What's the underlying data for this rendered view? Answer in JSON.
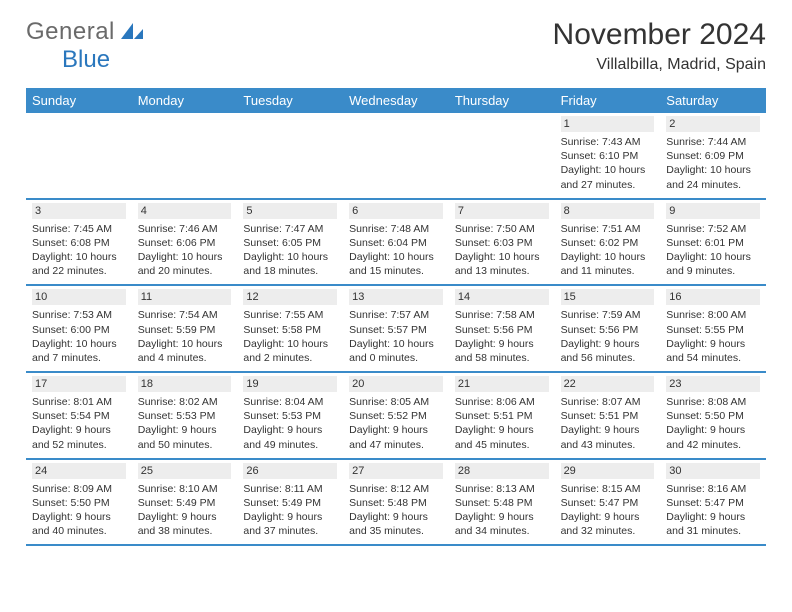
{
  "logo": {
    "t1": "General",
    "t2": "Blue"
  },
  "header": {
    "title": "November 2024",
    "subtitle": "Villalbilla, Madrid, Spain"
  },
  "colors": {
    "header_bg": "#3a8bc9",
    "daynum_bg": "#ededed",
    "text": "#333333",
    "rule": "#3a8bc9"
  },
  "dayNames": [
    "Sunday",
    "Monday",
    "Tuesday",
    "Wednesday",
    "Thursday",
    "Friday",
    "Saturday"
  ],
  "weeks": [
    [
      {
        "n": "",
        "sunrise": "",
        "sunset": "",
        "daylight": ""
      },
      {
        "n": "",
        "sunrise": "",
        "sunset": "",
        "daylight": ""
      },
      {
        "n": "",
        "sunrise": "",
        "sunset": "",
        "daylight": ""
      },
      {
        "n": "",
        "sunrise": "",
        "sunset": "",
        "daylight": ""
      },
      {
        "n": "",
        "sunrise": "",
        "sunset": "",
        "daylight": ""
      },
      {
        "n": "1",
        "sunrise": "Sunrise: 7:43 AM",
        "sunset": "Sunset: 6:10 PM",
        "daylight": "Daylight: 10 hours and 27 minutes."
      },
      {
        "n": "2",
        "sunrise": "Sunrise: 7:44 AM",
        "sunset": "Sunset: 6:09 PM",
        "daylight": "Daylight: 10 hours and 24 minutes."
      }
    ],
    [
      {
        "n": "3",
        "sunrise": "Sunrise: 7:45 AM",
        "sunset": "Sunset: 6:08 PM",
        "daylight": "Daylight: 10 hours and 22 minutes."
      },
      {
        "n": "4",
        "sunrise": "Sunrise: 7:46 AM",
        "sunset": "Sunset: 6:06 PM",
        "daylight": "Daylight: 10 hours and 20 minutes."
      },
      {
        "n": "5",
        "sunrise": "Sunrise: 7:47 AM",
        "sunset": "Sunset: 6:05 PM",
        "daylight": "Daylight: 10 hours and 18 minutes."
      },
      {
        "n": "6",
        "sunrise": "Sunrise: 7:48 AM",
        "sunset": "Sunset: 6:04 PM",
        "daylight": "Daylight: 10 hours and 15 minutes."
      },
      {
        "n": "7",
        "sunrise": "Sunrise: 7:50 AM",
        "sunset": "Sunset: 6:03 PM",
        "daylight": "Daylight: 10 hours and 13 minutes."
      },
      {
        "n": "8",
        "sunrise": "Sunrise: 7:51 AM",
        "sunset": "Sunset: 6:02 PM",
        "daylight": "Daylight: 10 hours and 11 minutes."
      },
      {
        "n": "9",
        "sunrise": "Sunrise: 7:52 AM",
        "sunset": "Sunset: 6:01 PM",
        "daylight": "Daylight: 10 hours and 9 minutes."
      }
    ],
    [
      {
        "n": "10",
        "sunrise": "Sunrise: 7:53 AM",
        "sunset": "Sunset: 6:00 PM",
        "daylight": "Daylight: 10 hours and 7 minutes."
      },
      {
        "n": "11",
        "sunrise": "Sunrise: 7:54 AM",
        "sunset": "Sunset: 5:59 PM",
        "daylight": "Daylight: 10 hours and 4 minutes."
      },
      {
        "n": "12",
        "sunrise": "Sunrise: 7:55 AM",
        "sunset": "Sunset: 5:58 PM",
        "daylight": "Daylight: 10 hours and 2 minutes."
      },
      {
        "n": "13",
        "sunrise": "Sunrise: 7:57 AM",
        "sunset": "Sunset: 5:57 PM",
        "daylight": "Daylight: 10 hours and 0 minutes."
      },
      {
        "n": "14",
        "sunrise": "Sunrise: 7:58 AM",
        "sunset": "Sunset: 5:56 PM",
        "daylight": "Daylight: 9 hours and 58 minutes."
      },
      {
        "n": "15",
        "sunrise": "Sunrise: 7:59 AM",
        "sunset": "Sunset: 5:56 PM",
        "daylight": "Daylight: 9 hours and 56 minutes."
      },
      {
        "n": "16",
        "sunrise": "Sunrise: 8:00 AM",
        "sunset": "Sunset: 5:55 PM",
        "daylight": "Daylight: 9 hours and 54 minutes."
      }
    ],
    [
      {
        "n": "17",
        "sunrise": "Sunrise: 8:01 AM",
        "sunset": "Sunset: 5:54 PM",
        "daylight": "Daylight: 9 hours and 52 minutes."
      },
      {
        "n": "18",
        "sunrise": "Sunrise: 8:02 AM",
        "sunset": "Sunset: 5:53 PM",
        "daylight": "Daylight: 9 hours and 50 minutes."
      },
      {
        "n": "19",
        "sunrise": "Sunrise: 8:04 AM",
        "sunset": "Sunset: 5:53 PM",
        "daylight": "Daylight: 9 hours and 49 minutes."
      },
      {
        "n": "20",
        "sunrise": "Sunrise: 8:05 AM",
        "sunset": "Sunset: 5:52 PM",
        "daylight": "Daylight: 9 hours and 47 minutes."
      },
      {
        "n": "21",
        "sunrise": "Sunrise: 8:06 AM",
        "sunset": "Sunset: 5:51 PM",
        "daylight": "Daylight: 9 hours and 45 minutes."
      },
      {
        "n": "22",
        "sunrise": "Sunrise: 8:07 AM",
        "sunset": "Sunset: 5:51 PM",
        "daylight": "Daylight: 9 hours and 43 minutes."
      },
      {
        "n": "23",
        "sunrise": "Sunrise: 8:08 AM",
        "sunset": "Sunset: 5:50 PM",
        "daylight": "Daylight: 9 hours and 42 minutes."
      }
    ],
    [
      {
        "n": "24",
        "sunrise": "Sunrise: 8:09 AM",
        "sunset": "Sunset: 5:50 PM",
        "daylight": "Daylight: 9 hours and 40 minutes."
      },
      {
        "n": "25",
        "sunrise": "Sunrise: 8:10 AM",
        "sunset": "Sunset: 5:49 PM",
        "daylight": "Daylight: 9 hours and 38 minutes."
      },
      {
        "n": "26",
        "sunrise": "Sunrise: 8:11 AM",
        "sunset": "Sunset: 5:49 PM",
        "daylight": "Daylight: 9 hours and 37 minutes."
      },
      {
        "n": "27",
        "sunrise": "Sunrise: 8:12 AM",
        "sunset": "Sunset: 5:48 PM",
        "daylight": "Daylight: 9 hours and 35 minutes."
      },
      {
        "n": "28",
        "sunrise": "Sunrise: 8:13 AM",
        "sunset": "Sunset: 5:48 PM",
        "daylight": "Daylight: 9 hours and 34 minutes."
      },
      {
        "n": "29",
        "sunrise": "Sunrise: 8:15 AM",
        "sunset": "Sunset: 5:47 PM",
        "daylight": "Daylight: 9 hours and 32 minutes."
      },
      {
        "n": "30",
        "sunrise": "Sunrise: 8:16 AM",
        "sunset": "Sunset: 5:47 PM",
        "daylight": "Daylight: 9 hours and 31 minutes."
      }
    ]
  ]
}
